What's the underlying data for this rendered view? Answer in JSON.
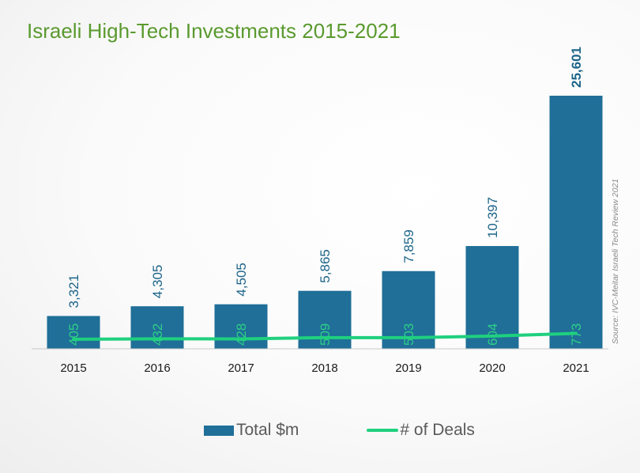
{
  "title": "Israeli High-Tech Investments 2015-2021",
  "source_note": "Source: IVC-Meitar Israeli Tech Review 2021",
  "colors": {
    "bar": "#1f6f98",
    "deals_line": "#1fd07e",
    "deals_text": "#2ecf86",
    "value_text": "#1c6489",
    "title": "#5a9a2e",
    "axis_text": "#1a1a1a"
  },
  "legend": {
    "total_label": "Total $m",
    "deals_label": "# of Deals"
  },
  "chart_data": {
    "type": "bar",
    "title": "Israeli High-Tech Investments 2015-2021",
    "categories": [
      "2015",
      "2016",
      "2017",
      "2018",
      "2019",
      "2020",
      "2021"
    ],
    "series": [
      {
        "name": "Total $m",
        "type": "bar",
        "values": [
          3321,
          4305,
          4505,
          5865,
          7859,
          10397,
          25601
        ],
        "labels": [
          "3,321",
          "4,305",
          "4,505",
          "5,865",
          "7,859",
          "10,397",
          "25,601"
        ]
      },
      {
        "name": "# of Deals",
        "type": "line",
        "values": [
          405,
          432,
          428,
          509,
          503,
          604,
          773
        ],
        "labels": [
          "405",
          "432",
          "428",
          "509",
          "503",
          "604",
          "773"
        ]
      }
    ],
    "ylim": [
      0,
      25601
    ],
    "grid": false,
    "legend_position": "bottom"
  }
}
